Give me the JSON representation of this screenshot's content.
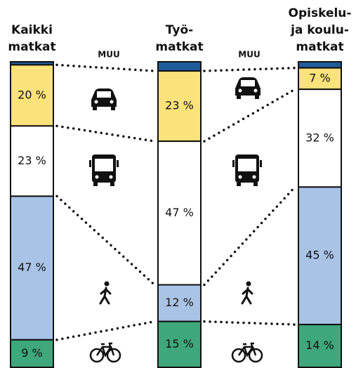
{
  "chart_data": {
    "type": "stacked-bar",
    "categories": [
      [
        "Kaikki",
        "matkat"
      ],
      [
        "Työ-",
        "matkat"
      ],
      [
        "Opiskelu-",
        "ja koulu-",
        "matkat"
      ]
    ],
    "series": [
      {
        "name": "MUU",
        "color": "#1f5c9a",
        "values": [
          1,
          3,
          2
        ]
      },
      {
        "color": "#fbe27a",
        "values": [
          20,
          23,
          7
        ],
        "value_labels": [
          "20 %",
          "23 %",
          "7 %"
        ]
      },
      {
        "color": "#ffffff",
        "values": [
          23,
          47,
          32
        ],
        "value_labels": [
          "23 %",
          "47 %",
          "32 %"
        ]
      },
      {
        "color": "#a9c3e6",
        "values": [
          47,
          12,
          45
        ],
        "value_labels": [
          "47 %",
          "12 %",
          "45 %"
        ]
      },
      {
        "color": "#3ea77c",
        "values": [
          9,
          15,
          14
        ],
        "value_labels": [
          "9 %",
          "15 %",
          "14 %"
        ]
      }
    ],
    "ylim": [
      0,
      100
    ]
  }
}
